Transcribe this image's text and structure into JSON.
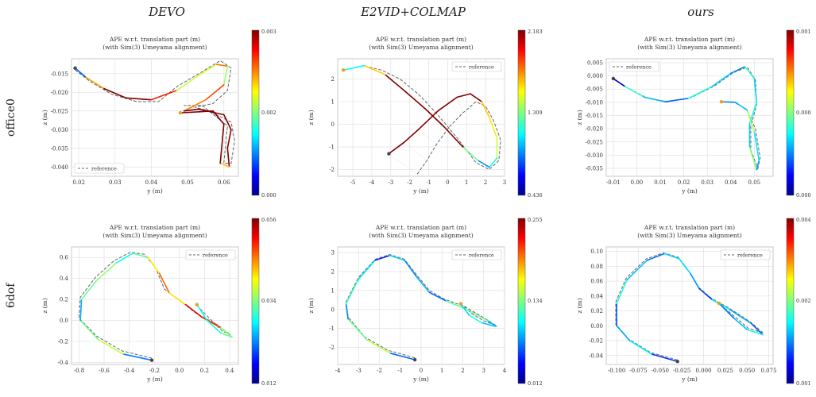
{
  "columns": [
    "DEVO",
    "E2VID+COLMAP",
    "ours"
  ],
  "rows": [
    "office0",
    "6dof"
  ],
  "plot_title_1": "APE w.r.t. translation part (m)",
  "plot_title_2": "(with Sim(3) Umeyama alignment)",
  "legend_label": "reference",
  "chart_data": [
    {
      "type": "line",
      "method": "DEVO",
      "sequence": "office0",
      "xlabel": "y (m)",
      "ylabel": "z (m)",
      "xlim": [
        0.018,
        0.064
      ],
      "ylim": [
        -0.0425,
        -0.011
      ],
      "xticks": [
        "0.02",
        "0.03",
        "0.04",
        "0.05",
        "0.06"
      ],
      "xtick_values": [
        0.02,
        0.03,
        0.04,
        0.05,
        0.06
      ],
      "yticks": [
        "-0.015",
        "-0.020",
        "-0.025",
        "-0.030",
        "-0.035",
        "-0.040"
      ],
      "ytick_values": [
        -0.015,
        -0.02,
        -0.025,
        -0.03,
        -0.035,
        -0.04
      ],
      "legend_position": "lower-left",
      "colorbar": {
        "min": "0.000",
        "mid": "0.002",
        "max": "0.003"
      },
      "estimate": [
        [
          0.019,
          -0.0135
        ],
        [
          0.022,
          -0.016
        ],
        [
          0.027,
          -0.019
        ],
        [
          0.033,
          -0.0215
        ],
        [
          0.04,
          -0.022
        ],
        [
          0.047,
          -0.0195
        ],
        [
          0.053,
          -0.0155
        ],
        [
          0.058,
          -0.0125
        ],
        [
          0.061,
          -0.013
        ],
        [
          0.06,
          -0.018
        ],
        [
          0.055,
          -0.022
        ],
        [
          0.049,
          -0.025
        ],
        [
          0.053,
          -0.0245
        ],
        [
          0.06,
          -0.026
        ],
        [
          0.062,
          -0.03
        ],
        [
          0.061,
          -0.035
        ],
        [
          0.0615,
          -0.04
        ],
        [
          0.059,
          -0.039
        ],
        [
          0.06,
          -0.0285
        ],
        [
          0.057,
          -0.025
        ],
        [
          0.048,
          -0.0255
        ]
      ],
      "reference": [
        [
          0.019,
          -0.014
        ],
        [
          0.023,
          -0.017
        ],
        [
          0.029,
          -0.0205
        ],
        [
          0.036,
          -0.0225
        ],
        [
          0.042,
          -0.0225
        ],
        [
          0.047,
          -0.0185
        ],
        [
          0.054,
          -0.0145
        ],
        [
          0.059,
          -0.0115
        ],
        [
          0.062,
          -0.0135
        ],
        [
          0.061,
          -0.0195
        ],
        [
          0.057,
          -0.023
        ],
        [
          0.052,
          -0.024
        ],
        [
          0.056,
          -0.025
        ],
        [
          0.062,
          -0.028
        ],
        [
          0.063,
          -0.033
        ],
        [
          0.062,
          -0.039
        ],
        [
          0.06,
          -0.039
        ],
        [
          0.061,
          -0.029
        ],
        [
          0.054,
          -0.0235
        ],
        [
          0.049,
          -0.0235
        ]
      ]
    },
    {
      "type": "line",
      "method": "E2VID+COLMAP",
      "sequence": "office0",
      "xlabel": "y (m)",
      "ylabel": "z (m)",
      "xlim": [
        -5.8,
        3.0
      ],
      "ylim": [
        -2.3,
        2.9
      ],
      "xticks": [
        "-5",
        "-4",
        "-3",
        "-2",
        "-1",
        "0",
        "1",
        "2",
        "3"
      ],
      "xtick_values": [
        -5,
        -4,
        -3,
        -2,
        -1,
        0,
        1,
        2,
        3
      ],
      "yticks": [
        "2",
        "1",
        "0",
        "-1",
        "-2"
      ],
      "ytick_values": [
        2,
        1,
        0,
        -1,
        -2
      ],
      "legend_position": "top-right",
      "colorbar": {
        "min": "0.436",
        "mid": "1.309",
        "max": "2.183"
      },
      "estimate": [
        [
          -3.1,
          -1.3
        ],
        [
          -2.3,
          -0.8
        ],
        [
          -1.5,
          -0.2
        ],
        [
          -0.5,
          0.6
        ],
        [
          0.5,
          1.2
        ],
        [
          1.2,
          1.35
        ],
        [
          1.8,
          1.0
        ],
        [
          2.2,
          0.3
        ],
        [
          2.6,
          -0.6
        ],
        [
          2.6,
          -1.5
        ],
        [
          2.2,
          -1.9
        ],
        [
          1.6,
          -1.6
        ],
        [
          0.8,
          -1.0
        ],
        [
          -0.2,
          -0.1
        ],
        [
          -1.2,
          0.7
        ],
        [
          -2.3,
          1.5
        ],
        [
          -3.3,
          2.2
        ],
        [
          -4.4,
          2.6
        ],
        [
          -5.5,
          2.4
        ]
      ],
      "reference": [
        [
          -1.6,
          -2.2
        ],
        [
          -1.1,
          -1.6
        ],
        [
          -0.6,
          -0.9
        ],
        [
          0.1,
          -0.1
        ],
        [
          0.8,
          0.5
        ],
        [
          1.5,
          1.0
        ],
        [
          2.0,
          0.8
        ],
        [
          2.4,
          0.2
        ],
        [
          2.8,
          -0.7
        ],
        [
          2.7,
          -1.6
        ],
        [
          2.2,
          -2.0
        ],
        [
          1.5,
          -1.7
        ],
        [
          0.5,
          -0.6
        ],
        [
          -0.5,
          0.4
        ],
        [
          -1.5,
          1.3
        ],
        [
          -2.5,
          2.0
        ],
        [
          -3.5,
          2.4
        ],
        [
          -4.5,
          2.6
        ]
      ]
    },
    {
      "type": "line",
      "method": "ours",
      "sequence": "office0",
      "xlabel": "y (m)",
      "ylabel": "z (m)",
      "xlim": [
        -0.013,
        0.058
      ],
      "ylim": [
        -0.038,
        0.0065
      ],
      "xticks": [
        "-0.01",
        "0.00",
        "0.01",
        "0.02",
        "0.03",
        "0.04",
        "0.05"
      ],
      "xtick_values": [
        -0.01,
        0.0,
        0.01,
        0.02,
        0.03,
        0.04,
        0.05
      ],
      "yticks": [
        "0.005",
        "0.000",
        "-0.005",
        "-0.010",
        "-0.015",
        "-0.020",
        "-0.025",
        "-0.030",
        "-0.035"
      ],
      "ytick_values": [
        0.005,
        0.0,
        -0.005,
        -0.01,
        -0.015,
        -0.02,
        -0.025,
        -0.03,
        -0.035
      ],
      "legend_position": "top-left",
      "colorbar": {
        "min": "0.000",
        "mid": "0.000",
        "max": "0.001"
      },
      "estimate": [
        [
          -0.01,
          -0.001
        ],
        [
          -0.005,
          -0.004
        ],
        [
          0.003,
          -0.008
        ],
        [
          0.012,
          -0.0098
        ],
        [
          0.022,
          -0.0085
        ],
        [
          0.032,
          -0.004
        ],
        [
          0.04,
          0.001
        ],
        [
          0.046,
          0.0035
        ],
        [
          0.05,
          -0.001
        ],
        [
          0.051,
          -0.01
        ],
        [
          0.048,
          -0.018
        ],
        [
          0.048,
          -0.027
        ],
        [
          0.051,
          -0.0355
        ],
        [
          0.052,
          -0.032
        ],
        [
          0.05,
          -0.021
        ],
        [
          0.047,
          -0.013
        ],
        [
          0.042,
          -0.01
        ],
        [
          0.036,
          -0.0098
        ]
      ],
      "reference": [
        [
          -0.01,
          -0.0012
        ],
        [
          -0.004,
          -0.0045
        ],
        [
          0.004,
          -0.0082
        ],
        [
          0.013,
          -0.0098
        ],
        [
          0.023,
          -0.0083
        ],
        [
          0.033,
          -0.0038
        ],
        [
          0.041,
          0.0012
        ],
        [
          0.047,
          0.0033
        ],
        [
          0.0505,
          -0.0015
        ],
        [
          0.051,
          -0.011
        ],
        [
          0.0485,
          -0.019
        ],
        [
          0.0485,
          -0.028
        ],
        [
          0.0515,
          -0.035
        ],
        [
          0.0525,
          -0.031
        ],
        [
          0.0505,
          -0.02
        ],
        [
          0.0465,
          -0.0125
        ],
        [
          0.041,
          -0.0098
        ],
        [
          0.036,
          -0.0098
        ]
      ]
    },
    {
      "type": "line",
      "method": "DEVO",
      "sequence": "6dof",
      "xlabel": "y (m)",
      "ylabel": "z (m)",
      "xlim": [
        -0.86,
        0.47
      ],
      "ylim": [
        -0.42,
        0.7
      ],
      "xticks": [
        "-0.8",
        "-0.6",
        "-0.4",
        "-0.2",
        "0.0",
        "0.2",
        "0.4"
      ],
      "xtick_values": [
        -0.8,
        -0.6,
        -0.4,
        -0.2,
        0.0,
        0.2,
        0.4
      ],
      "yticks": [
        "0.6",
        "0.4",
        "0.2",
        "0.0",
        "-0.2",
        "-0.4"
      ],
      "ytick_values": [
        0.6,
        0.4,
        0.2,
        0.0,
        -0.2,
        -0.4
      ],
      "legend_position": "top-right",
      "colorbar": {
        "min": "0.012",
        "mid": "0.034",
        "max": "0.056"
      },
      "estimate": [
        [
          -0.22,
          -0.38
        ],
        [
          -0.45,
          -0.32
        ],
        [
          -0.65,
          -0.18
        ],
        [
          -0.79,
          0.0
        ],
        [
          -0.78,
          0.2
        ],
        [
          -0.66,
          0.38
        ],
        [
          -0.5,
          0.55
        ],
        [
          -0.37,
          0.64
        ],
        [
          -0.25,
          0.6
        ],
        [
          -0.16,
          0.45
        ],
        [
          -0.08,
          0.26
        ],
        [
          0.05,
          0.15
        ],
        [
          0.18,
          0.03
        ],
        [
          0.33,
          -0.07
        ],
        [
          0.42,
          -0.16
        ],
        [
          0.33,
          -0.12
        ],
        [
          0.22,
          0.0
        ],
        [
          0.14,
          0.15
        ]
      ],
      "reference": [
        [
          -0.22,
          -0.36
        ],
        [
          -0.46,
          -0.29
        ],
        [
          -0.66,
          -0.15
        ],
        [
          -0.8,
          0.02
        ],
        [
          -0.79,
          0.22
        ],
        [
          -0.67,
          0.41
        ],
        [
          -0.52,
          0.57
        ],
        [
          -0.39,
          0.65
        ],
        [
          -0.28,
          0.63
        ],
        [
          -0.19,
          0.5
        ],
        [
          -0.12,
          0.3
        ],
        [
          0.0,
          0.19
        ],
        [
          0.13,
          0.07
        ],
        [
          0.3,
          -0.04
        ],
        [
          0.41,
          -0.14
        ],
        [
          0.34,
          -0.1
        ],
        [
          0.24,
          0.02
        ],
        [
          0.14,
          0.14
        ]
      ]
    },
    {
      "type": "line",
      "method": "E2VID+COLMAP",
      "sequence": "6dof",
      "xlabel": "y (m)",
      "ylabel": "z (m)",
      "xlim": [
        -4.0,
        4.0
      ],
      "ylim": [
        -2.9,
        3.3
      ],
      "xticks": [
        "-4",
        "-3",
        "-2",
        "-1",
        "0",
        "1",
        "2",
        "3",
        "4"
      ],
      "xtick_values": [
        -4,
        -3,
        -2,
        -1,
        0,
        1,
        2,
        3,
        4
      ],
      "yticks": [
        "3",
        "2",
        "1",
        "0",
        "-1",
        "-2"
      ],
      "ytick_values": [
        3,
        2,
        1,
        0,
        -1,
        -2
      ],
      "legend_position": "top-right",
      "colorbar": {
        "min": "0.012",
        "mid": "0.134",
        "max": "0.255"
      },
      "estimate": [
        [
          -0.3,
          -2.65
        ],
        [
          -1.5,
          -2.3
        ],
        [
          -2.6,
          -1.6
        ],
        [
          -3.5,
          -0.5
        ],
        [
          -3.6,
          0.3
        ],
        [
          -3.0,
          1.6
        ],
        [
          -2.2,
          2.6
        ],
        [
          -1.5,
          2.85
        ],
        [
          -0.8,
          2.6
        ],
        [
          -0.2,
          1.7
        ],
        [
          0.4,
          0.9
        ],
        [
          1.2,
          0.45
        ],
        [
          2.2,
          0.0
        ],
        [
          3.2,
          -0.6
        ],
        [
          3.6,
          -0.9
        ],
        [
          2.9,
          -0.7
        ],
        [
          2.3,
          -0.3
        ],
        [
          1.9,
          0.3
        ]
      ],
      "reference": [
        [
          -0.3,
          -2.55
        ],
        [
          -1.6,
          -2.15
        ],
        [
          -2.7,
          -1.45
        ],
        [
          -3.5,
          -0.4
        ],
        [
          -3.6,
          0.4
        ],
        [
          -3.0,
          1.7
        ],
        [
          -2.2,
          2.65
        ],
        [
          -1.5,
          2.9
        ],
        [
          -0.8,
          2.65
        ],
        [
          -0.2,
          1.8
        ],
        [
          0.4,
          1.0
        ],
        [
          1.1,
          0.55
        ],
        [
          2.1,
          0.15
        ],
        [
          3.1,
          -0.5
        ],
        [
          3.6,
          -0.85
        ],
        [
          3.0,
          -0.6
        ],
        [
          2.4,
          -0.2
        ],
        [
          1.9,
          0.3
        ]
      ]
    },
    {
      "type": "line",
      "method": "ours",
      "sequence": "6dof",
      "xlabel": "y (m)",
      "ylabel": "z (m)",
      "xlim": [
        -0.112,
        0.08
      ],
      "ylim": [
        -0.052,
        0.106
      ],
      "xticks": [
        "-0.100",
        "-0.075",
        "-0.050",
        "-0.025",
        "0.000",
        "0.025",
        "0.050",
        "0.075"
      ],
      "xtick_values": [
        -0.1,
        -0.075,
        -0.05,
        -0.025,
        0.0,
        0.025,
        0.05,
        0.075
      ],
      "yticks": [
        "0.10",
        "0.08",
        "0.06",
        "0.04",
        "0.02",
        "0.00",
        "-0.02",
        "-0.04"
      ],
      "ytick_values": [
        0.1,
        0.08,
        0.06,
        0.04,
        0.02,
        0.0,
        -0.02,
        -0.04
      ],
      "legend_position": "top-right",
      "colorbar": {
        "min": "0.001",
        "mid": "0.002",
        "max": "0.004"
      },
      "estimate": [
        [
          -0.03,
          -0.048
        ],
        [
          -0.06,
          -0.038
        ],
        [
          -0.085,
          -0.02
        ],
        [
          -0.1,
          0.0
        ],
        [
          -0.1,
          0.03
        ],
        [
          -0.088,
          0.062
        ],
        [
          -0.065,
          0.088
        ],
        [
          -0.045,
          0.097
        ],
        [
          -0.028,
          0.09
        ],
        [
          -0.015,
          0.07
        ],
        [
          -0.005,
          0.05
        ],
        [
          0.01,
          0.035
        ],
        [
          0.03,
          0.022
        ],
        [
          0.055,
          0.003
        ],
        [
          0.068,
          -0.012
        ],
        [
          0.05,
          -0.005
        ],
        [
          0.035,
          0.01
        ],
        [
          0.018,
          0.03
        ]
      ],
      "reference": [
        [
          -0.03,
          -0.046
        ],
        [
          -0.061,
          -0.036
        ],
        [
          -0.086,
          -0.018
        ],
        [
          -0.101,
          0.002
        ],
        [
          -0.101,
          0.032
        ],
        [
          -0.089,
          0.064
        ],
        [
          -0.066,
          0.09
        ],
        [
          -0.046,
          0.098
        ],
        [
          -0.029,
          0.092
        ],
        [
          -0.016,
          0.072
        ],
        [
          -0.006,
          0.052
        ],
        [
          0.009,
          0.037
        ],
        [
          0.029,
          0.024
        ],
        [
          0.054,
          0.005
        ],
        [
          0.069,
          -0.01
        ],
        [
          0.051,
          -0.003
        ],
        [
          0.036,
          0.012
        ],
        [
          0.018,
          0.03
        ]
      ]
    }
  ]
}
